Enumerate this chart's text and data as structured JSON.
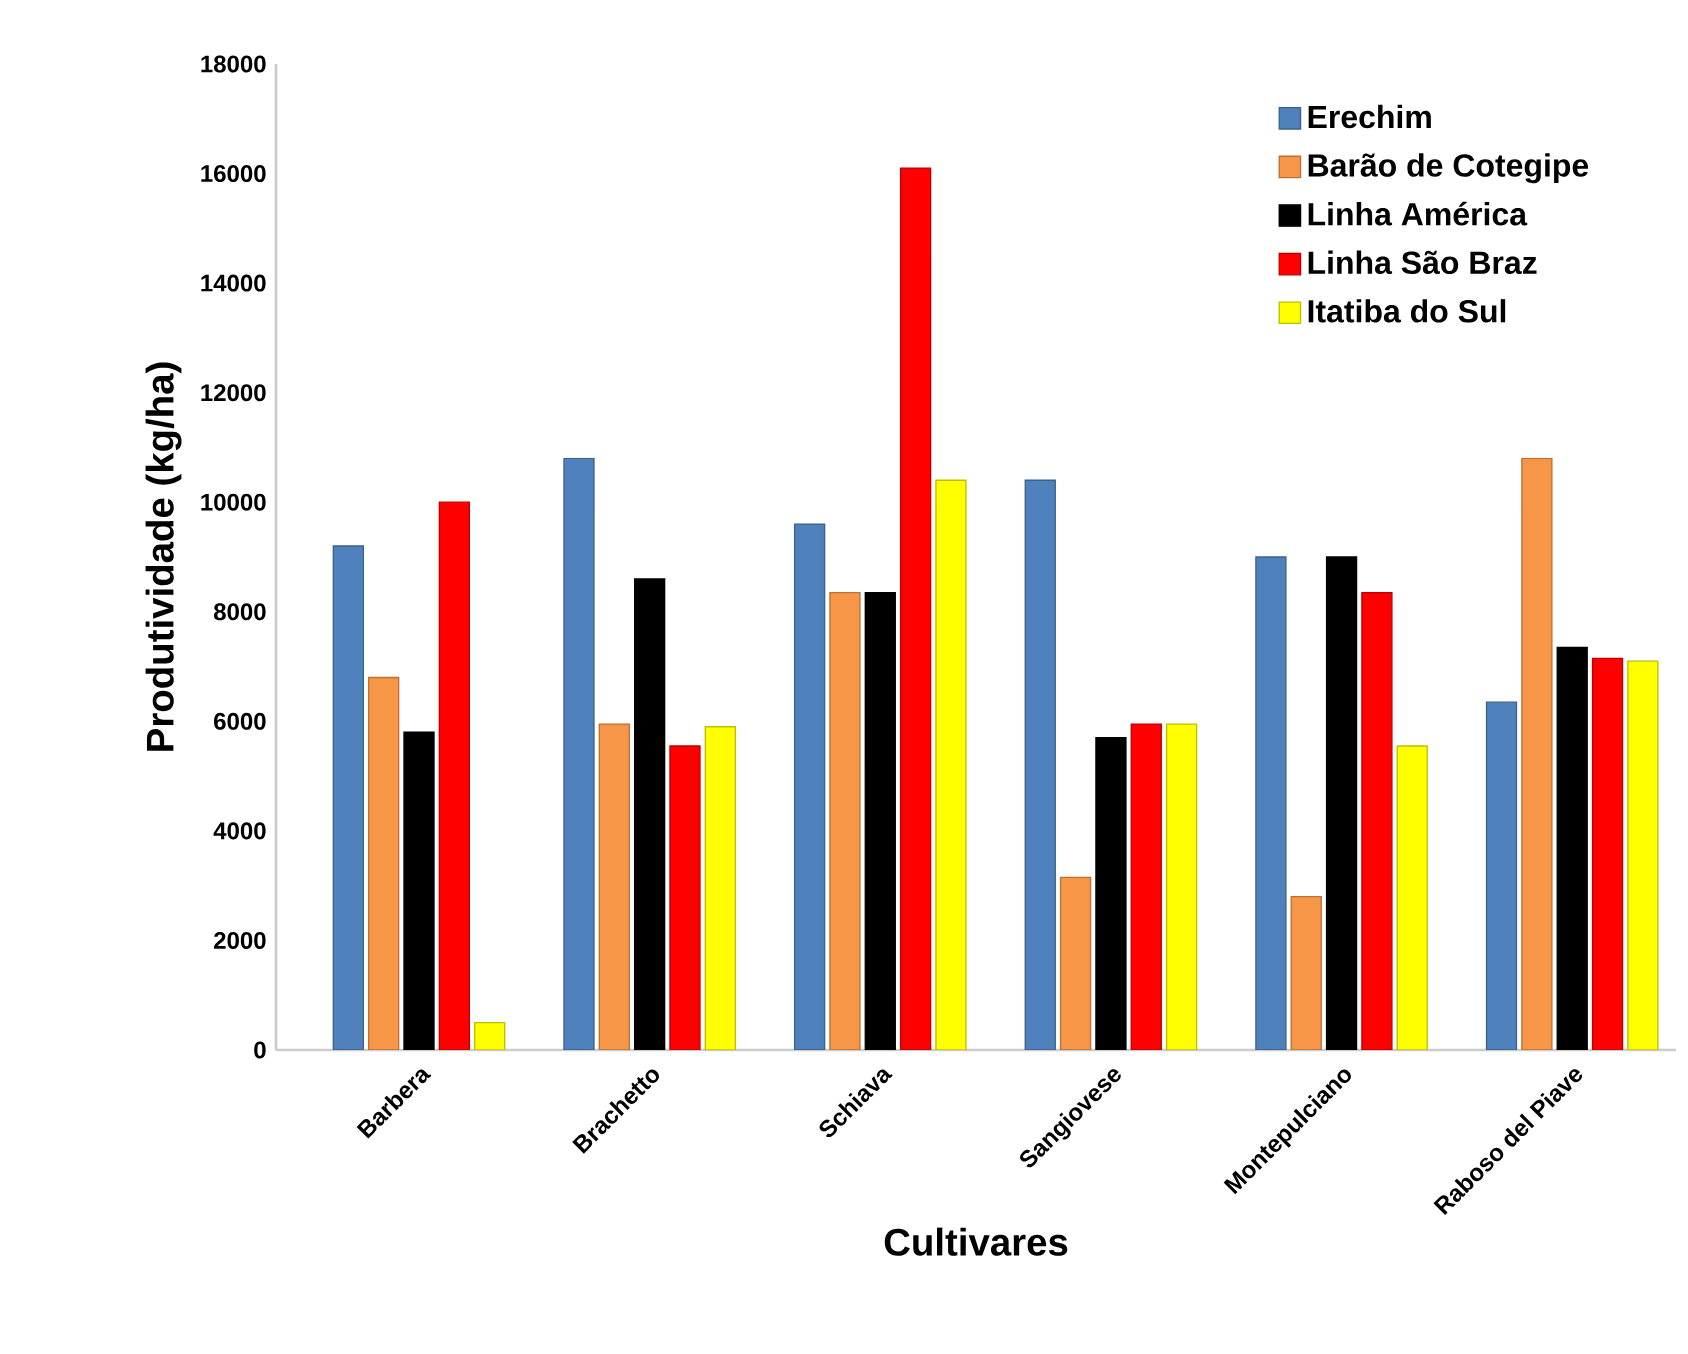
{
  "chart_data": {
    "type": "bar",
    "xlabel": "Cultivares",
    "ylabel": "Produtividade (kg/ha)",
    "categories": [
      "Barbera",
      "Brachetto",
      "Schiava",
      "Sangiovese",
      "Montepulciano",
      "Raboso del Piave"
    ],
    "series": [
      {
        "name": "Erechim",
        "color": "#4f81bd",
        "values": [
          9200,
          10800,
          9600,
          10400,
          9000,
          6350
        ]
      },
      {
        "name": "Barão de Cotegipe",
        "color": "#f79646",
        "values": [
          6800,
          5950,
          8350,
          3150,
          2800,
          10800
        ]
      },
      {
        "name": "Linha América",
        "color": "#000000",
        "values": [
          5800,
          8600,
          8350,
          5700,
          9000,
          7350
        ]
      },
      {
        "name": "Linha São Braz",
        "color": "#ff0000",
        "values": [
          10000,
          5550,
          16100,
          5950,
          8350,
          7150
        ]
      },
      {
        "name": "Itatiba do Sul",
        "color": "#ffff00",
        "values": [
          500,
          5900,
          10400,
          5950,
          5550,
          7100
        ]
      }
    ],
    "ylim": [
      0,
      18000
    ],
    "yticks": [
      0,
      2000,
      4000,
      6000,
      8000,
      10000,
      12000,
      14000,
      16000,
      18000
    ],
    "grid": false,
    "legend": "top right"
  }
}
